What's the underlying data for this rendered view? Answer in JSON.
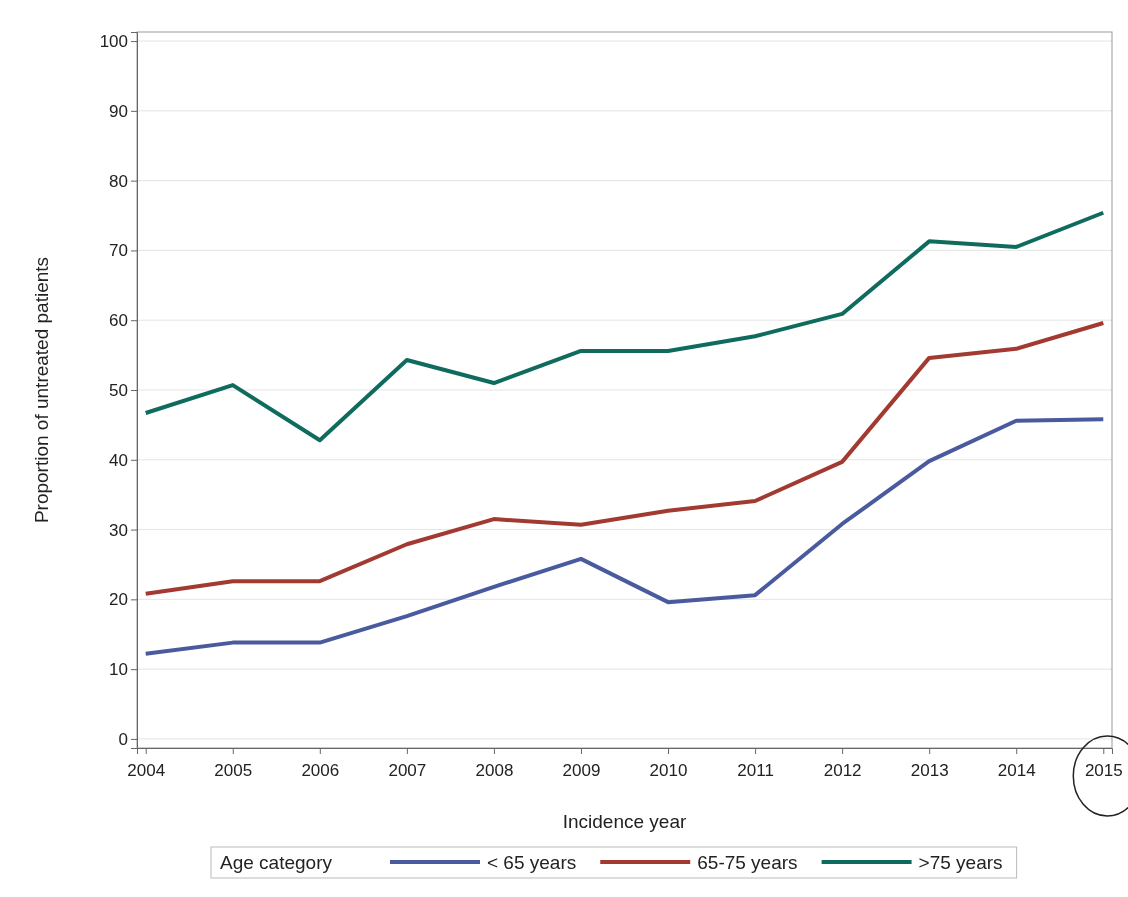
{
  "chart_data": {
    "type": "line",
    "xlabel": "Incidence year",
    "ylabel": "Proportion of untreated patients",
    "legend_title": "Age category",
    "x": [
      2004,
      2005,
      2006,
      2007,
      2008,
      2009,
      2010,
      2011,
      2012,
      2013,
      2014,
      2015
    ],
    "xlim": [
      2003.9,
      2015.1
    ],
    "xticks": [
      2004,
      2005,
      2006,
      2007,
      2008,
      2009,
      2010,
      2011,
      2012,
      2013,
      2014,
      2015
    ],
    "ylim": [
      -1.3,
      101.3
    ],
    "yticks": [
      0,
      10,
      20,
      30,
      40,
      50,
      60,
      70,
      80,
      90,
      100
    ],
    "grid": "y",
    "legend": "bottom",
    "marker": "none",
    "line_style": "solid",
    "series": [
      {
        "name": "< 65 years",
        "color": "#4a5a9e",
        "values": [
          12.2,
          13.8,
          13.8,
          17.6,
          21.8,
          25.8,
          19.6,
          20.6,
          30.8,
          39.8,
          45.6,
          45.8
        ]
      },
      {
        "name": "65-75 years",
        "color": "#a23a32",
        "values": [
          20.8,
          22.6,
          22.6,
          27.9,
          31.5,
          30.7,
          32.7,
          34.1,
          39.7,
          54.6,
          55.9,
          59.6
        ]
      },
      {
        "name": ">75 years",
        "color": "#0f6b5e",
        "values": [
          46.7,
          50.7,
          42.8,
          54.3,
          51.0,
          55.6,
          55.6,
          57.7,
          60.9,
          71.3,
          70.5,
          75.4
        ]
      }
    ]
  }
}
